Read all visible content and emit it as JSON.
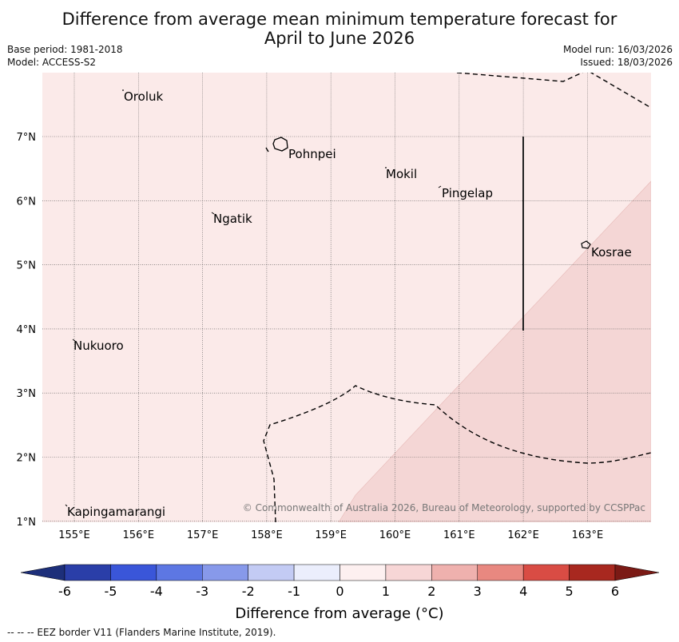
{
  "title_line1": "Difference from average mean minimum temperature forecast for",
  "title_line2": "April to June 2026",
  "meta_left": [
    "Base period: 1981-2018",
    "Model: ACCESS-S2"
  ],
  "meta_right": [
    "Model run: 16/03/2026",
    "Issued: 18/03/2026"
  ],
  "map": {
    "lon_labels": [
      "155°E",
      "156°E",
      "157°E",
      "158°E",
      "159°E",
      "160°E",
      "161°E",
      "162°E",
      "163°E"
    ],
    "lat_labels": [
      "7°N",
      "6°N",
      "5°N",
      "4°N",
      "3°N",
      "2°N",
      "1°N"
    ],
    "places": [
      {
        "name": "Oroluk"
      },
      {
        "name": "Pohnpei"
      },
      {
        "name": "Mokil"
      },
      {
        "name": "Pingelap"
      },
      {
        "name": "Ngatik"
      },
      {
        "name": "Kosrae"
      },
      {
        "name": "Nukuoro"
      },
      {
        "name": "Kapingamarangi"
      }
    ],
    "background_category": "0 to 1",
    "warm_region_category": "1 to 2",
    "copyright": "© Commonwealth of Australia 2026, Bureau of Meteorology, supported by CCSPPac"
  },
  "colorbar": {
    "tick_labels": [
      "-6",
      "-5",
      "-4",
      "-3",
      "-2",
      "-1",
      "0",
      "1",
      "2",
      "3",
      "4",
      "5",
      "6"
    ],
    "colors": [
      "#2a3ea8",
      "#3a56d9",
      "#5d77e3",
      "#8799ea",
      "#c3cbf4",
      "#ebeefc",
      "#fdf0f0",
      "#f7d6d6",
      "#efb1ae",
      "#e88880",
      "#d94c44",
      "#a8281f"
    ],
    "low_extend_color": "#1d2f7a",
    "high_extend_color": "#7b1a15",
    "label": "Difference from average (°C)"
  },
  "footnote": "--  --  -- EEZ border V11 (Flanders Marine Institute, 2019)."
}
